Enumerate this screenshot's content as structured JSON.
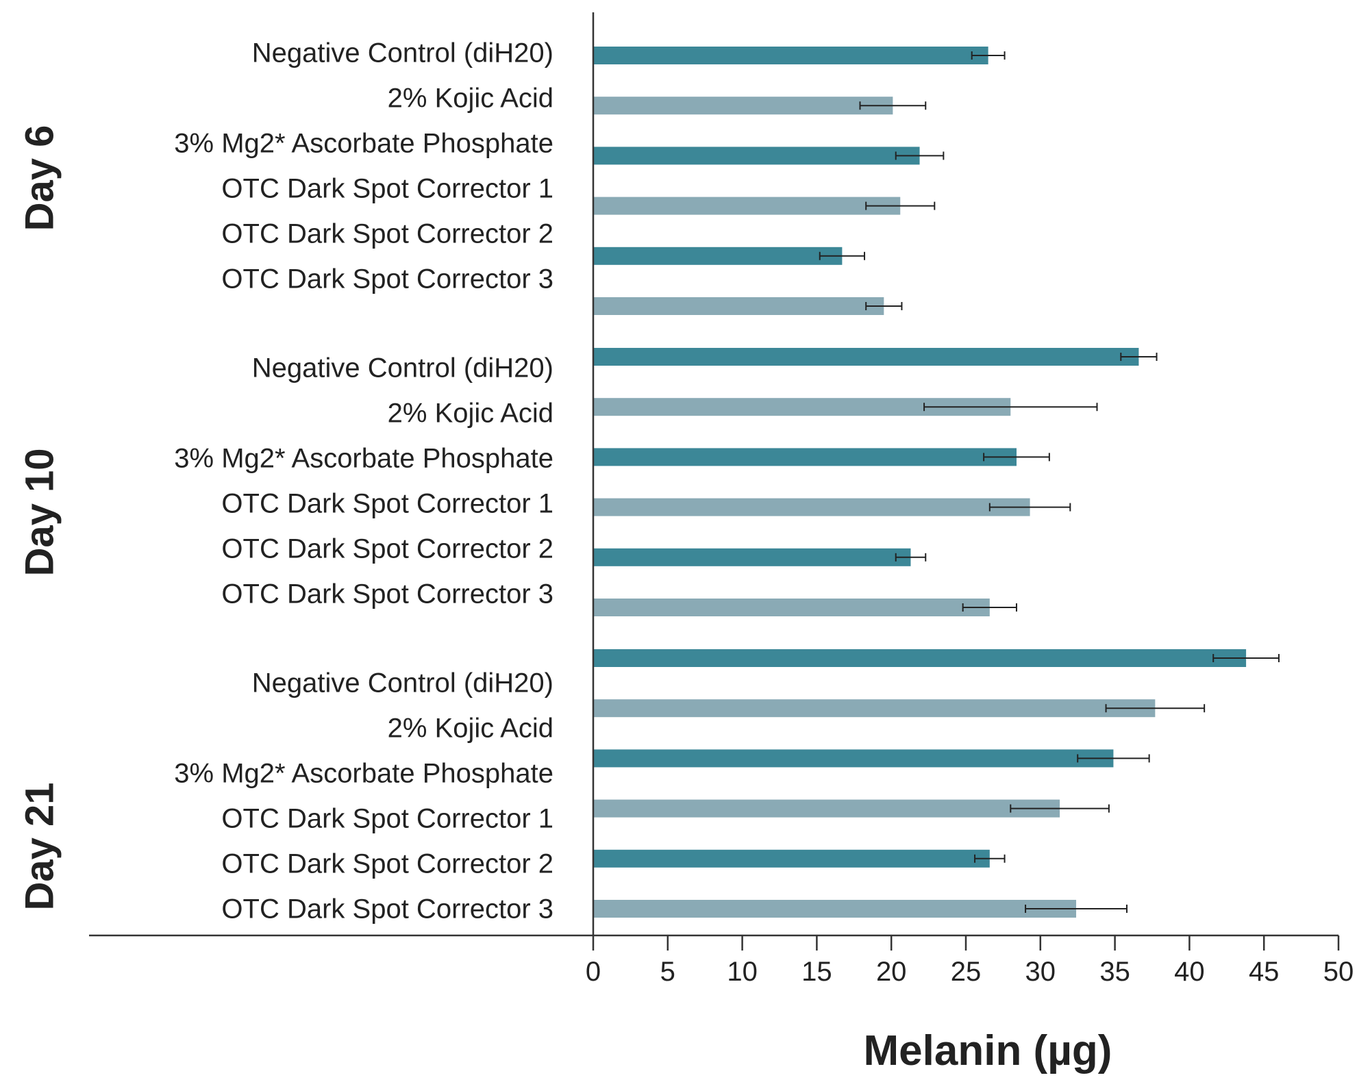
{
  "chart_data": {
    "type": "bar",
    "orientation": "horizontal",
    "xlabel": "Melanin (µg)",
    "xlim": [
      0,
      50
    ],
    "xticks": [
      0,
      5,
      10,
      15,
      20,
      25,
      30,
      35,
      40,
      45,
      50
    ],
    "grid": false,
    "colors": {
      "dark": "#3c8797",
      "light": "#8aaab5",
      "axis": "#333333",
      "error": "#222222"
    },
    "groups": [
      {
        "name": "Day 6",
        "categories": [
          "Negative Control (diH20)",
          "2% Kojic Acid",
          "3% Mg2* Ascorbate Phosphate",
          "OTC Dark Spot Corrector 1",
          "OTC Dark Spot Corrector 2",
          "OTC Dark Spot Corrector 3"
        ],
        "values": [
          26.5,
          20.1,
          21.9,
          20.6,
          16.7,
          19.5
        ],
        "errors": [
          1.1,
          2.2,
          1.6,
          2.3,
          1.5,
          1.2
        ]
      },
      {
        "name": "Day 10",
        "categories": [
          "Negative Control (diH20)",
          "2% Kojic Acid",
          "3% Mg2* Ascorbate Phosphate",
          "OTC Dark Spot Corrector 1",
          "OTC Dark Spot Corrector 2",
          "OTC Dark Spot Corrector 3"
        ],
        "values": [
          36.6,
          28.0,
          28.4,
          29.3,
          21.3,
          26.6
        ],
        "errors": [
          1.2,
          5.8,
          2.2,
          2.7,
          1.0,
          1.8
        ]
      },
      {
        "name": "Day 21",
        "categories": [
          "Negative Control (diH20)",
          "2% Kojic Acid",
          "3% Mg2* Ascorbate Phosphate",
          "OTC Dark Spot Corrector 1",
          "OTC Dark Spot Corrector 2",
          "OTC Dark Spot Corrector 3"
        ],
        "values": [
          43.8,
          37.7,
          34.9,
          31.3,
          26.6,
          32.4
        ],
        "errors": [
          2.2,
          3.3,
          2.4,
          3.3,
          1.0,
          3.4
        ]
      }
    ]
  }
}
